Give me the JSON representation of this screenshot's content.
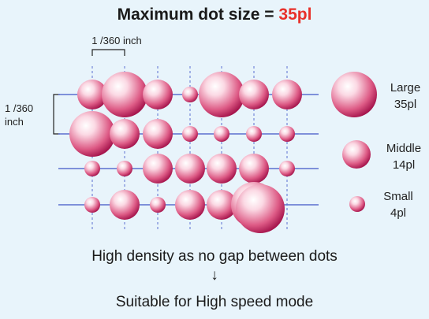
{
  "title": {
    "prefix": "Maximum dot size  = ",
    "value": "35pl"
  },
  "pitch": {
    "horizontal_label": "1 /360 inch",
    "vertical_label_line1": "1 /360",
    "vertical_label_line2": "inch"
  },
  "legend": {
    "large": {
      "name": "Large",
      "volume": "35pl"
    },
    "middle": {
      "name": "Middle",
      "volume": "14pl"
    },
    "small": {
      "name": "Small",
      "volume": "4pl"
    }
  },
  "caption": {
    "line1": "High density as no gap between dots",
    "arrow": "↓",
    "line2": "Suitable for High speed mode"
  },
  "dot_grid": [
    [
      "middle",
      "large",
      "middle",
      "small",
      "large",
      "middle",
      "middle"
    ],
    [
      "large",
      "middle",
      "middle",
      "small",
      "small",
      "small",
      "small"
    ],
    [
      "small",
      "small",
      "middle",
      "middle",
      "middle",
      "middle",
      "small"
    ],
    [
      "small",
      "middle",
      "small",
      "middle",
      "middle",
      "large",
      null
    ]
  ],
  "colors": {
    "background": "#e8f4fb",
    "dot_dark": "#b8174f",
    "dot_light": "#ffffff",
    "grid_line": "#5b6fd0",
    "accent": "#e8302a"
  }
}
